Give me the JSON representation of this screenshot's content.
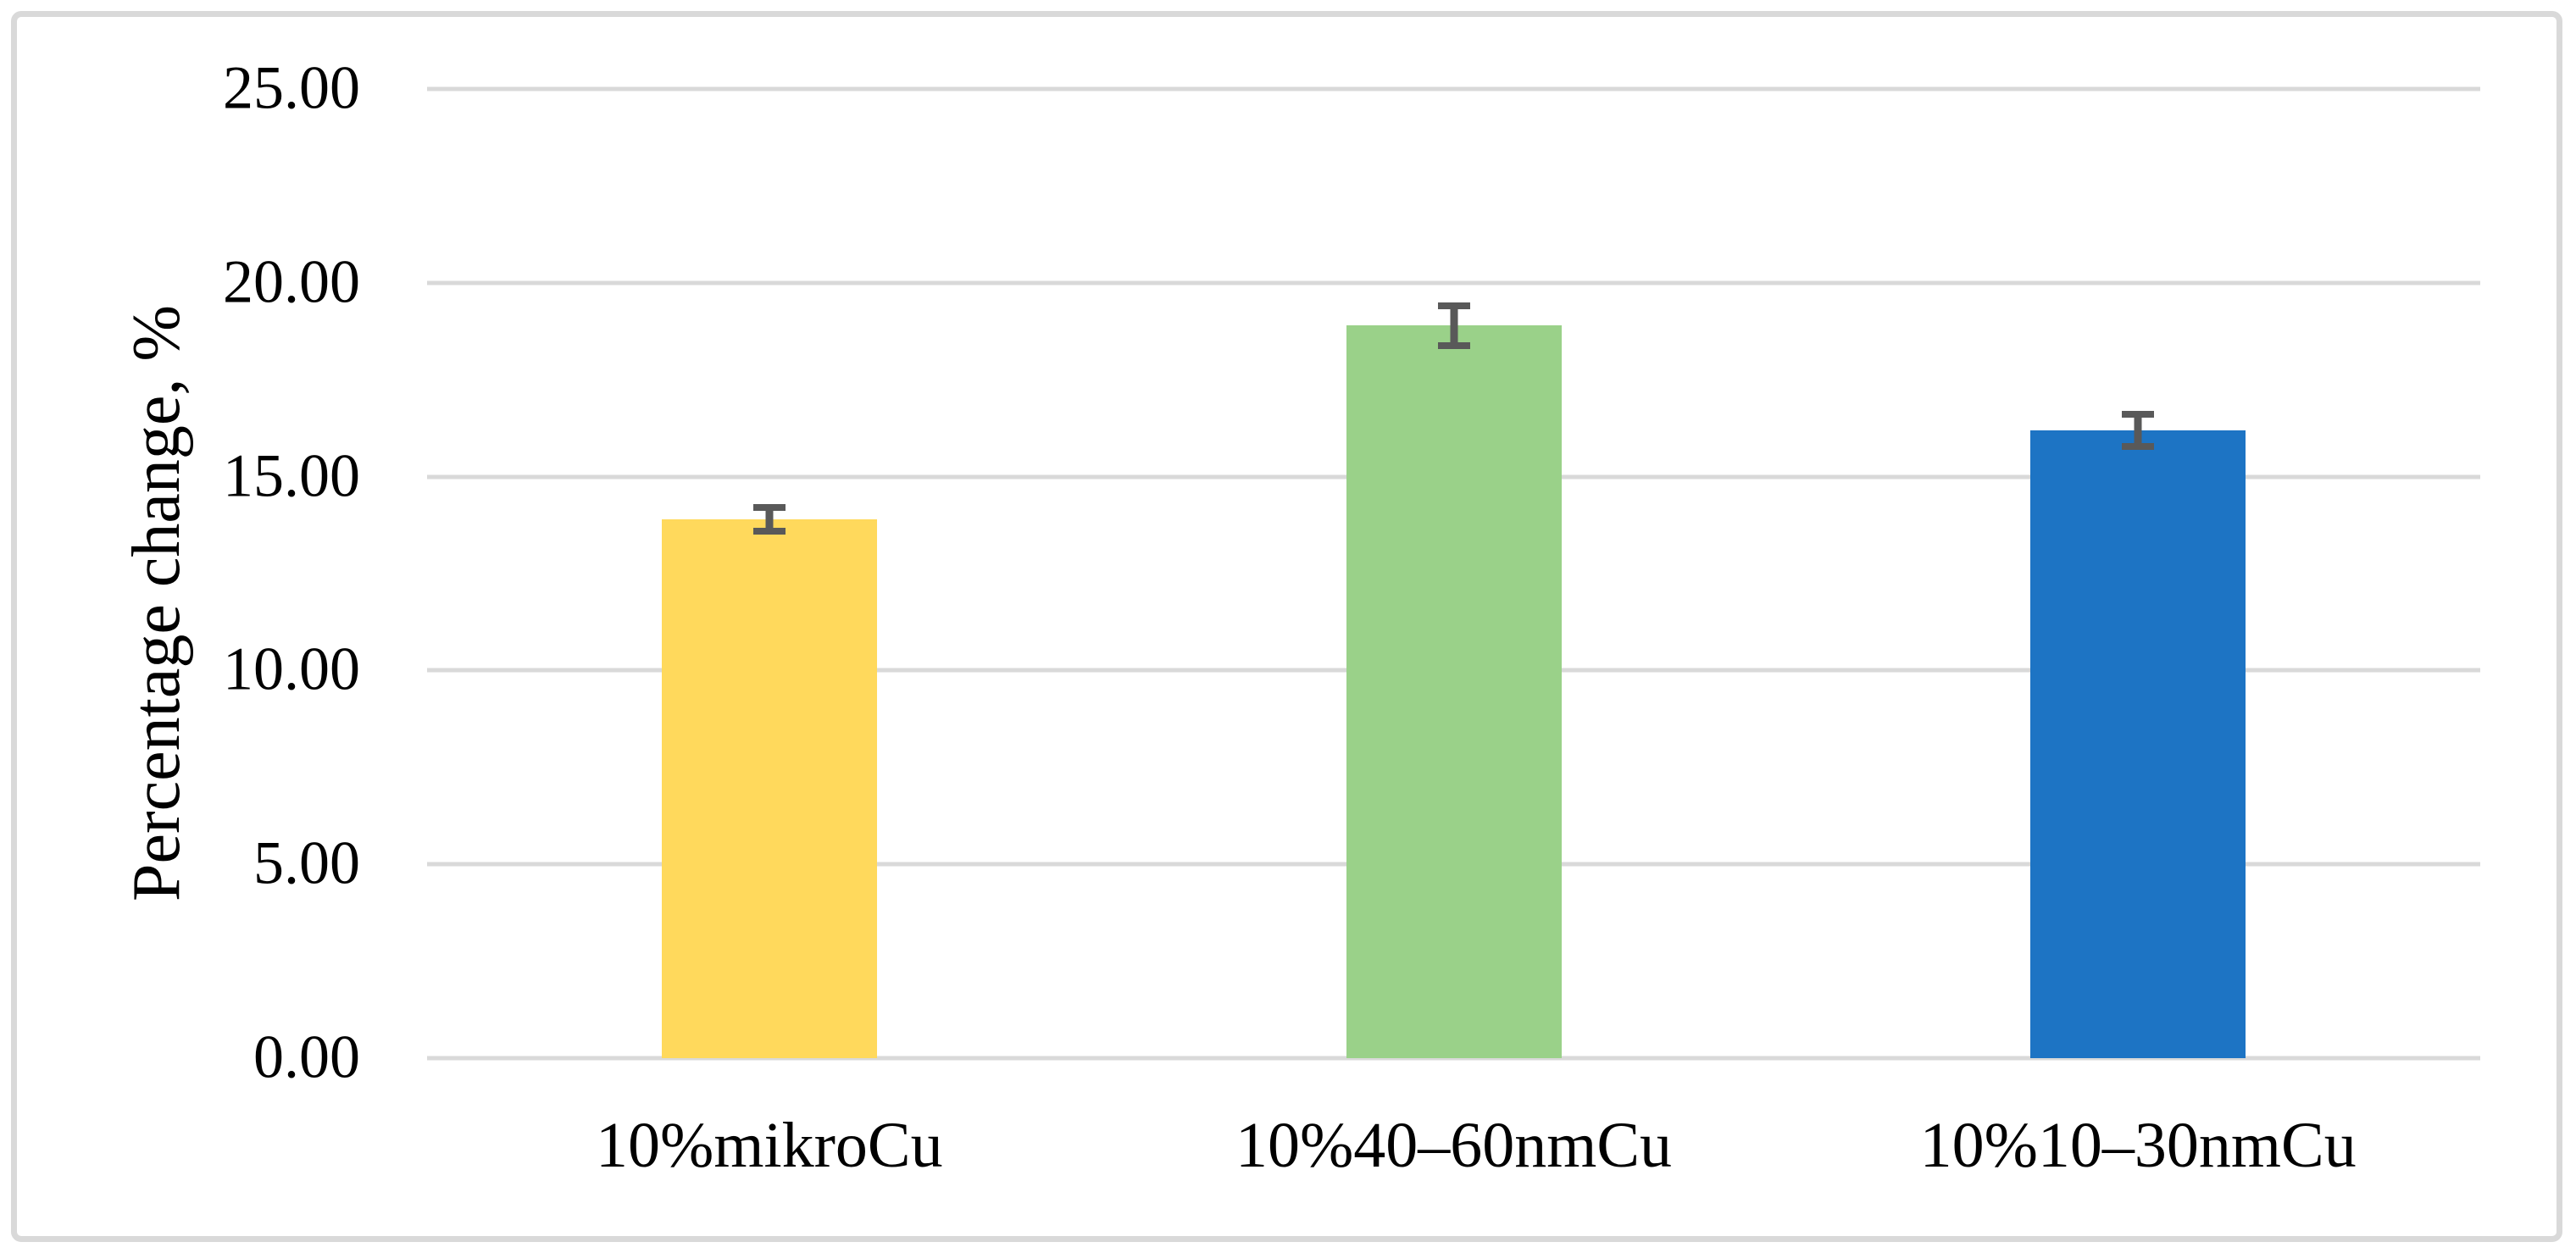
{
  "chart_data": {
    "type": "bar",
    "title": "",
    "xlabel": "",
    "ylabel": "Percentage change, %",
    "categories": [
      "10%mikroCu",
      "10%40–60nmCu",
      "10%10–30nmCu"
    ],
    "values": [
      13.9,
      18.9,
      16.2
    ],
    "errors": [
      0.4,
      0.6,
      0.5
    ],
    "bar_colors": [
      "#FFD95C",
      "#9AD189",
      "#1D74C4"
    ],
    "ylim": [
      0,
      25
    ],
    "yticks": [
      0,
      5,
      10,
      15,
      20,
      25
    ],
    "ytick_labels": [
      "0.00",
      "5.00",
      "10.00",
      "15.00",
      "20.00",
      "25.00"
    ],
    "grid": true,
    "legend_position": "none",
    "gridline_color": "#D9D9D9",
    "axis_line_color": "#D9D9D9",
    "error_bar_color": "#595959",
    "frame_color": "#D9D9D9",
    "background_color": "#FFFFFF"
  }
}
